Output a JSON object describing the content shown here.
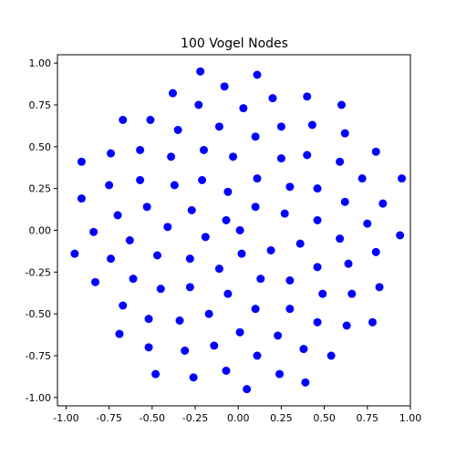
{
  "chart_data": {
    "type": "scatter",
    "title": "100 Vogel Nodes",
    "xlabel": "",
    "ylabel": "",
    "xlim": [
      -1.05,
      1.0
    ],
    "ylim": [
      -1.05,
      1.05
    ],
    "grid": false,
    "legend": "none",
    "x_ticks": [
      "-1.00",
      "-0.75",
      "-0.50",
      "-0.25",
      "0.00",
      "0.25",
      "0.50",
      "0.75",
      "1.00"
    ],
    "y_ticks": [
      "1.00",
      "0.75",
      "0.50",
      "0.25",
      "0.00",
      "-0.25",
      "-0.50",
      "-0.75",
      "-1.00"
    ],
    "series": [
      {
        "color": "#0000ff",
        "points": [
          [
            0.05,
            -0.95
          ],
          [
            -0.07,
            -0.84
          ],
          [
            -0.26,
            -0.88
          ],
          [
            -0.48,
            -0.86
          ],
          [
            0.24,
            -0.86
          ],
          [
            0.39,
            -0.91
          ],
          [
            -0.14,
            -0.69
          ],
          [
            0.11,
            -0.75
          ],
          [
            -0.31,
            -0.72
          ],
          [
            -0.52,
            -0.7
          ],
          [
            0.38,
            -0.71
          ],
          [
            0.54,
            -0.75
          ],
          [
            0.01,
            -0.61
          ],
          [
            -0.69,
            -0.62
          ],
          [
            0.23,
            -0.63
          ],
          [
            -0.17,
            -0.5
          ],
          [
            -0.34,
            -0.54
          ],
          [
            -0.52,
            -0.53
          ],
          [
            0.1,
            -0.47
          ],
          [
            0.46,
            -0.55
          ],
          [
            0.63,
            -0.57
          ],
          [
            0.78,
            -0.55
          ],
          [
            -0.67,
            -0.45
          ],
          [
            -0.45,
            -0.35
          ],
          [
            0.3,
            -0.47
          ],
          [
            -0.28,
            -0.34
          ],
          [
            -0.06,
            -0.38
          ],
          [
            0.49,
            -0.38
          ],
          [
            0.66,
            -0.38
          ],
          [
            0.82,
            -0.34
          ],
          [
            -0.61,
            -0.29
          ],
          [
            -0.83,
            -0.31
          ],
          [
            0.13,
            -0.29
          ],
          [
            0.3,
            -0.3
          ],
          [
            -0.11,
            -0.23
          ],
          [
            0.46,
            -0.22
          ],
          [
            -0.28,
            -0.17
          ],
          [
            0.64,
            -0.2
          ],
          [
            -0.74,
            -0.17
          ],
          [
            -0.47,
            -0.15
          ],
          [
            0.02,
            -0.14
          ],
          [
            0.19,
            -0.12
          ],
          [
            0.8,
            -0.13
          ],
          [
            -0.95,
            -0.14
          ],
          [
            -0.63,
            -0.06
          ],
          [
            0.36,
            -0.08
          ],
          [
            0.59,
            -0.05
          ],
          [
            0.94,
            -0.03
          ],
          [
            -0.19,
            -0.04
          ],
          [
            0.01,
            0.0
          ],
          [
            -0.84,
            -0.01
          ],
          [
            -0.41,
            0.02
          ],
          [
            -0.07,
            0.06
          ],
          [
            0.46,
            0.06
          ],
          [
            0.75,
            0.04
          ],
          [
            -0.7,
            0.09
          ],
          [
            0.27,
            0.1
          ],
          [
            -0.27,
            0.12
          ],
          [
            0.1,
            0.14
          ],
          [
            -0.53,
            0.14
          ],
          [
            0.62,
            0.17
          ],
          [
            0.84,
            0.16
          ],
          [
            -0.91,
            0.19
          ],
          [
            -0.06,
            0.23
          ],
          [
            0.46,
            0.25
          ],
          [
            -0.37,
            0.27
          ],
          [
            0.3,
            0.26
          ],
          [
            -0.75,
            0.27
          ],
          [
            0.95,
            0.31
          ],
          [
            -0.57,
            0.3
          ],
          [
            -0.21,
            0.3
          ],
          [
            0.11,
            0.31
          ],
          [
            0.72,
            0.31
          ],
          [
            -0.91,
            0.41
          ],
          [
            -0.03,
            0.44
          ],
          [
            0.59,
            0.41
          ],
          [
            0.25,
            0.43
          ],
          [
            -0.39,
            0.44
          ],
          [
            0.4,
            0.45
          ],
          [
            -0.74,
            0.46
          ],
          [
            -0.57,
            0.48
          ],
          [
            0.8,
            0.47
          ],
          [
            -0.2,
            0.48
          ],
          [
            0.1,
            0.56
          ],
          [
            0.62,
            0.58
          ],
          [
            -0.35,
            0.6
          ],
          [
            0.25,
            0.62
          ],
          [
            0.43,
            0.63
          ],
          [
            -0.11,
            0.62
          ],
          [
            -0.67,
            0.66
          ],
          [
            -0.51,
            0.66
          ],
          [
            0.03,
            0.73
          ],
          [
            -0.23,
            0.75
          ],
          [
            0.6,
            0.75
          ],
          [
            0.2,
            0.79
          ],
          [
            0.4,
            0.8
          ],
          [
            -0.38,
            0.82
          ],
          [
            -0.08,
            0.86
          ],
          [
            0.11,
            0.93
          ],
          [
            -0.22,
            0.95
          ]
        ]
      }
    ]
  }
}
